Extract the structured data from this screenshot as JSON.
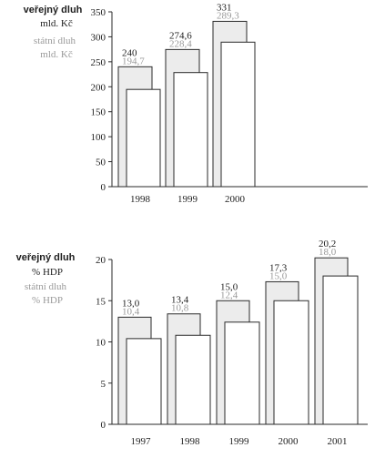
{
  "chart_data": [
    {
      "type": "bar",
      "categories": [
        "1998",
        "1999",
        "2000"
      ],
      "ylim": [
        0,
        350
      ],
      "yticks": [
        "0",
        "50",
        "100",
        "150",
        "200",
        "250",
        "300",
        "350"
      ],
      "ylabel_lines": [
        "veřejný dluh",
        "mld. Kč"
      ],
      "ylabel2_lines": [
        "státní dluh",
        "mld. Kč"
      ],
      "series": [
        {
          "name": "veřejný dluh",
          "values": [
            240,
            274.6,
            331
          ],
          "labels": [
            "240",
            "274,6",
            "331"
          ],
          "color": "#ececec"
        },
        {
          "name": "státní dluh",
          "values": [
            194.7,
            228.4,
            289.3
          ],
          "labels": [
            "194,7",
            "228,4",
            "289,3"
          ],
          "color": "#ffffff"
        }
      ],
      "legend": "left",
      "grid": false
    },
    {
      "type": "bar",
      "categories": [
        "1997",
        "1998",
        "1999",
        "2000",
        "2001"
      ],
      "ylim": [
        0,
        20
      ],
      "yticks": [
        "0",
        "5",
        "10",
        "15",
        "20"
      ],
      "ylabel_lines": [
        "veřejný dluh",
        "% HDP"
      ],
      "ylabel2_lines": [
        "státní dluh",
        "% HDP"
      ],
      "series": [
        {
          "name": "veřejný dluh",
          "values": [
            13.0,
            13.4,
            15.0,
            17.3,
            20.2
          ],
          "labels": [
            "13,0",
            "13,4",
            "15,0",
            "17,3",
            "20,2"
          ],
          "color": "#ececec"
        },
        {
          "name": "státní dluh",
          "values": [
            10.4,
            10.8,
            12.4,
            15.0,
            18.0
          ],
          "labels": [
            "10,4",
            "10,8",
            "12,4",
            "15,0",
            "18,0"
          ],
          "color": "#ffffff"
        }
      ],
      "legend": "left",
      "grid": false
    }
  ]
}
